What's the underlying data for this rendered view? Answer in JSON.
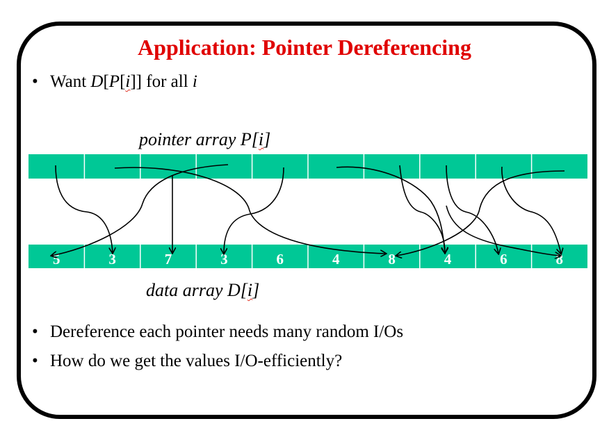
{
  "title": "Application: Pointer Dereferencing",
  "bullet1": {
    "text": "Want ",
    "d": "D",
    "p": "P",
    "i": "i",
    "tail": " for all ",
    "i2": "i"
  },
  "pointer_label": {
    "text": "pointer array P[",
    "i": "i",
    "close": "]"
  },
  "data_label": {
    "text": "data array D[",
    "i": "i",
    "close": "]"
  },
  "data_values": [
    "5",
    "3",
    "7",
    "3",
    "6",
    "4",
    "8",
    "4",
    "6",
    "8"
  ],
  "bullet2": "Dereference each pointer needs many random I/Os",
  "bullet3": "How do we get the values I/O-efficiently?",
  "colors": {
    "title": "#e00000",
    "array": "#00c896",
    "frame": "#000000"
  }
}
